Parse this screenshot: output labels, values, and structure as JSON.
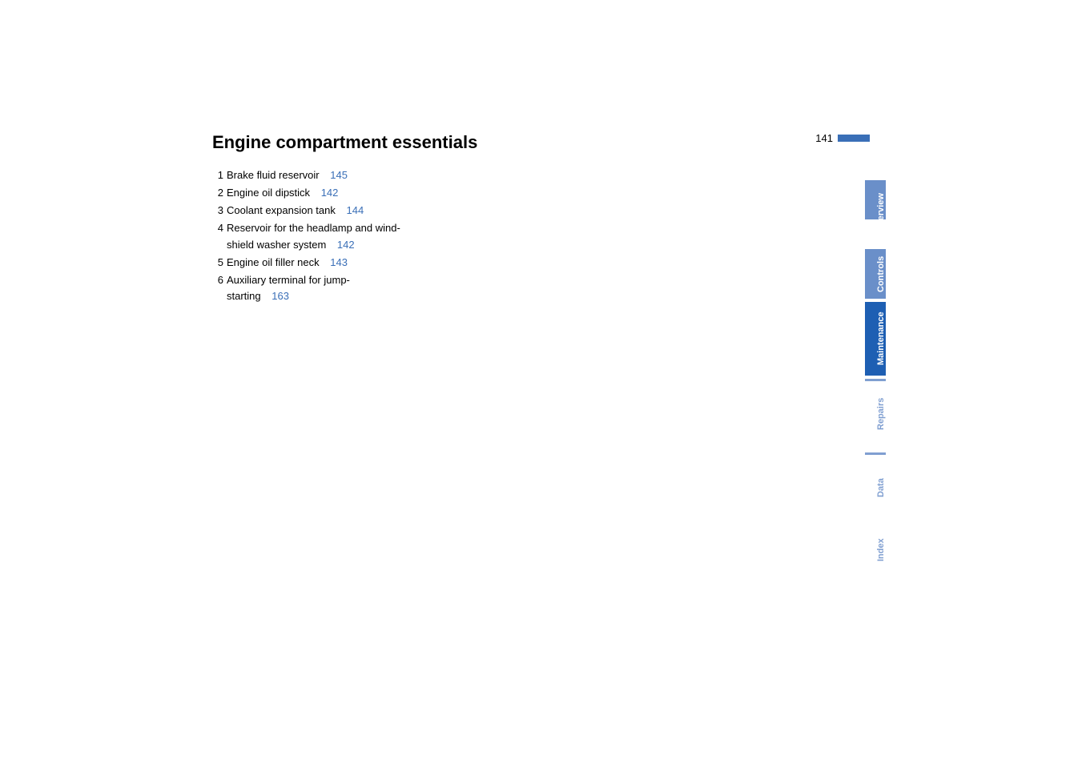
{
  "page": {
    "title": "Engine compartment essentials",
    "number": "141"
  },
  "items": [
    {
      "num": "1",
      "text": "Brake fluid reservoir",
      "link": "145"
    },
    {
      "num": "2",
      "text": "Engine oil dipstick",
      "link": "142"
    },
    {
      "num": "3",
      "text": "Coolant expansion tank",
      "link": "144"
    },
    {
      "num": "4",
      "text_line1": "Reservoir for the headlamp and wind-",
      "text_line2": "shield washer system",
      "link": "142"
    },
    {
      "num": "5",
      "text": "Engine oil filler neck",
      "link": "143"
    },
    {
      "num": "6",
      "text_line1": "Auxiliary terminal for jump-",
      "text_line2": "starting",
      "link": "163"
    }
  ],
  "tabs": {
    "overview": "Overview",
    "controls": "Controls",
    "maintenance": "Maintenance",
    "repairs": "Repairs",
    "data": "Data",
    "index": "Index"
  },
  "colors": {
    "link": "#3a6fb7",
    "tab_active_bg": "#1e5fb3",
    "tab_inactive_bg": "#6a8fc9",
    "tab_inactive_text": "#6a8fc9",
    "text": "#000000",
    "background": "#ffffff"
  },
  "typography": {
    "title_fontsize": 22,
    "body_fontsize": 13,
    "tab_fontsize": 11
  }
}
